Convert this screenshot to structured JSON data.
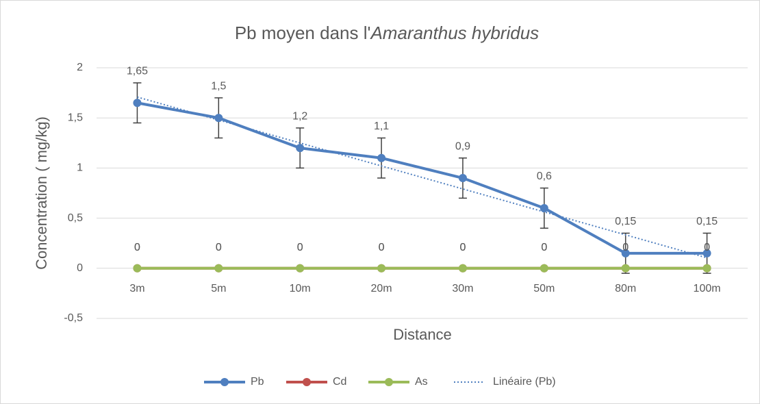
{
  "chart_data": {
    "type": "line",
    "title": [
      "Pb moyen dans l'",
      "Amaranthus hybridus"
    ],
    "x_label": "Distance",
    "y_label": "Concentration ( mg/kg)",
    "categories": [
      "3m",
      "5m",
      "10m",
      "20m",
      "30m",
      "50m",
      "80m",
      "100m"
    ],
    "series": [
      {
        "name": "Pb",
        "color": "#4f7fbf",
        "values": [
          1.65,
          1.5,
          1.2,
          1.1,
          0.9,
          0.6,
          0.15,
          0.15
        ],
        "value_labels": [
          "1,65",
          "1,5",
          "1,2",
          "1,1",
          "0,9",
          "0,6",
          "0,15",
          "0,15"
        ],
        "errors": [
          0.2,
          0.2,
          0.2,
          0.2,
          0.2,
          0.2,
          0.2,
          0.2
        ]
      },
      {
        "name": "Cd",
        "color": "#c0504d",
        "values": [
          0,
          0,
          0,
          0,
          0,
          0,
          0,
          0
        ]
      },
      {
        "name": "As",
        "color": "#9bbb59",
        "values": [
          0,
          0,
          0,
          0,
          0,
          0,
          0,
          0
        ]
      }
    ],
    "trendline": {
      "name": "Linéaire (Pb)",
      "series": 0,
      "kind": "linear",
      "color": "#4f7fbf"
    },
    "ylim": [
      -0.5,
      2
    ],
    "yticks": [
      {
        "value": -0.5,
        "label": "-0,5"
      },
      0,
      {
        "value": 0.5,
        "label": "0,5"
      },
      1,
      {
        "value": 1.5,
        "label": "1,5"
      },
      2
    ],
    "grid": true,
    "legend": "bottom"
  }
}
